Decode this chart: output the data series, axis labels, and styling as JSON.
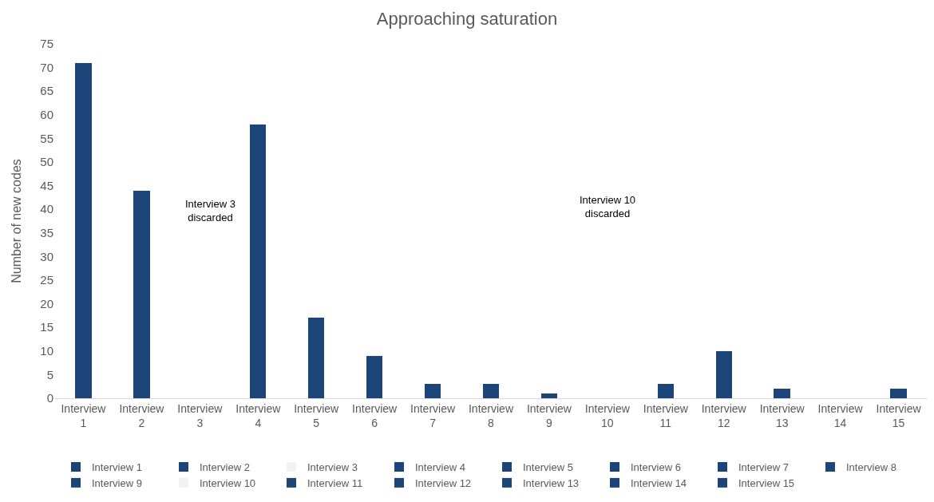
{
  "chart_data": {
    "type": "bar",
    "title": "Approaching saturation",
    "ylabel": "Number of new codes",
    "categories": [
      "Interview 1",
      "Interview 2",
      "Interview 3",
      "Interview 4",
      "Interview 5",
      "Interview 6",
      "Interview 7",
      "Interview 8",
      "Interview 9",
      "Interview 10",
      "Interview 11",
      "Interview 12",
      "Interview 13",
      "Interview 14",
      "Interview 15"
    ],
    "series": [
      {
        "name": "Interview 1",
        "color": "#1c4679",
        "values": [
          71,
          null,
          null,
          null,
          null,
          null,
          null,
          null,
          null,
          null,
          null,
          null,
          null,
          null,
          null
        ]
      },
      {
        "name": "Interview 2",
        "color": "#1c4679",
        "values": [
          null,
          44,
          null,
          null,
          null,
          null,
          null,
          null,
          null,
          null,
          null,
          null,
          null,
          null,
          null
        ]
      },
      {
        "name": "Interview 3",
        "color": "#f2f2f2",
        "values": [
          null,
          null,
          null,
          null,
          null,
          null,
          null,
          null,
          null,
          null,
          null,
          null,
          null,
          null,
          null
        ]
      },
      {
        "name": "Interview 4",
        "color": "#1c4679",
        "values": [
          null,
          null,
          null,
          58,
          null,
          null,
          null,
          null,
          null,
          null,
          null,
          null,
          null,
          null,
          null
        ]
      },
      {
        "name": "Interview 5",
        "color": "#1c4679",
        "values": [
          null,
          null,
          null,
          null,
          17,
          null,
          null,
          null,
          null,
          null,
          null,
          null,
          null,
          null,
          null
        ]
      },
      {
        "name": "Interview 6",
        "color": "#1c4679",
        "values": [
          null,
          null,
          null,
          null,
          null,
          9,
          null,
          null,
          null,
          null,
          null,
          null,
          null,
          null,
          null
        ]
      },
      {
        "name": "Interview 7",
        "color": "#1c4679",
        "values": [
          null,
          null,
          null,
          null,
          null,
          null,
          3,
          null,
          null,
          null,
          null,
          null,
          null,
          null,
          null
        ]
      },
      {
        "name": "Interview 8",
        "color": "#1c4679",
        "values": [
          null,
          null,
          null,
          null,
          null,
          null,
          null,
          3,
          null,
          null,
          null,
          null,
          null,
          null,
          null
        ]
      },
      {
        "name": "Interview 9",
        "color": "#1c4679",
        "values": [
          null,
          null,
          null,
          null,
          null,
          null,
          null,
          null,
          1,
          null,
          null,
          null,
          null,
          null,
          null
        ]
      },
      {
        "name": "Interview 10",
        "color": "#f2f2f2",
        "values": [
          null,
          null,
          null,
          null,
          null,
          null,
          null,
          null,
          null,
          null,
          null,
          null,
          null,
          null,
          null
        ]
      },
      {
        "name": "Interview 11",
        "color": "#1c4679",
        "values": [
          null,
          null,
          null,
          null,
          null,
          null,
          null,
          null,
          null,
          null,
          3,
          null,
          null,
          null,
          null
        ]
      },
      {
        "name": "Interview 12",
        "color": "#1c4679",
        "values": [
          null,
          null,
          null,
          null,
          null,
          null,
          null,
          null,
          null,
          null,
          null,
          10,
          null,
          null,
          null
        ]
      },
      {
        "name": "Interview 13",
        "color": "#1c4679",
        "values": [
          null,
          null,
          null,
          null,
          null,
          null,
          null,
          null,
          null,
          null,
          null,
          null,
          2,
          null,
          null
        ]
      },
      {
        "name": "Interview 14",
        "color": "#1c4679",
        "values": [
          null,
          null,
          null,
          null,
          null,
          null,
          null,
          null,
          null,
          null,
          null,
          null,
          null,
          0,
          null
        ]
      },
      {
        "name": "Interview 15",
        "color": "#1c4679",
        "values": [
          null,
          null,
          null,
          null,
          null,
          null,
          null,
          null,
          null,
          null,
          null,
          null,
          null,
          null,
          2
        ]
      }
    ],
    "annotations": [
      "Interview 3\ndiscarded",
      "Interview 10\ndiscarded"
    ],
    "ylim": [
      0,
      75
    ],
    "yticks": [
      0,
      5,
      10,
      15,
      20,
      25,
      30,
      35,
      40,
      45,
      50,
      55,
      60,
      65,
      70,
      75
    ],
    "grid": false,
    "legend": "bottom"
  }
}
